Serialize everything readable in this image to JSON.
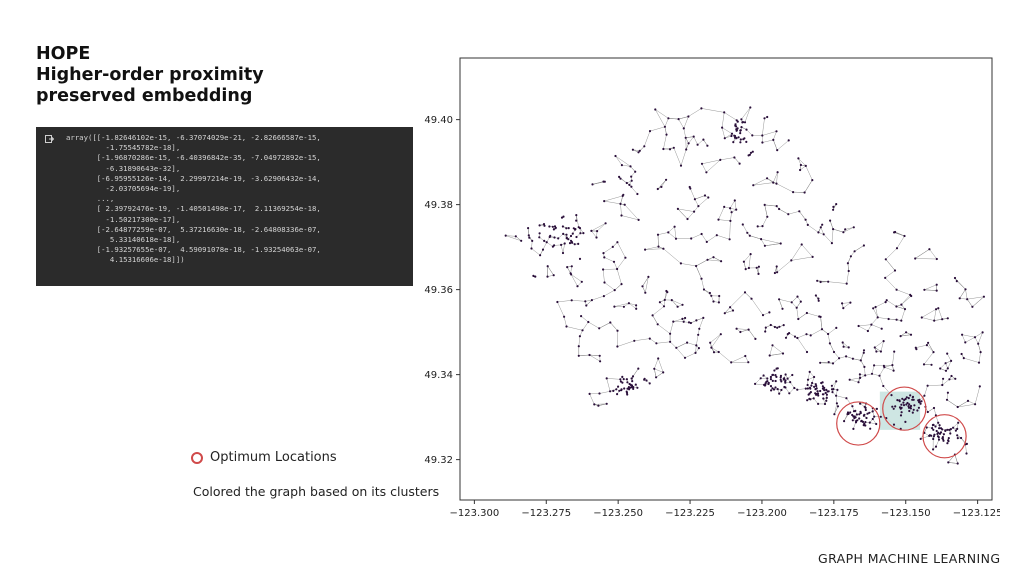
{
  "slide": {
    "title_line1": "HOPE",
    "title_line2": "Higher-order proximity",
    "title_line3": "preserved embedding",
    "legend_label": "Optimum Locations",
    "caption": "Colored the graph based on its clusters",
    "footer": "GRAPH MACHINE LEARNING"
  },
  "code_output": {
    "lines": [
      "array([[-1.82646102e-15, -6.37074029e-21, -2.82666587e-15,",
      "         -1.75545782e-18],",
      "       [-1.96870286e-15, -6.40396842e-35, -7.04972892e-15,",
      "         -6.31890643e-32],",
      "       [-6.95955126e-14,  2.29997214e-19, -3.62906432e-14,",
      "         -2.03705694e-19],",
      "       ...,",
      "       [ 2.39792476e-19, -1.40501498e-17,  2.11369254e-18,",
      "         -1.50217300e-17],",
      "       [-2.64877259e-07,  5.37216630e-18, -2.64808336e-07,",
      "          5.33140618e-18],",
      "       [-1.93257655e-07,  4.59091078e-18, -1.93254063e-07,",
      "          4.15316606e-18]])"
    ]
  },
  "colors": {
    "node": "#2a0f3a",
    "edge": "#7a7a7a",
    "cluster_light": "#c9e3e0",
    "highlight_circle": "#d04a4a"
  },
  "chart_data": {
    "type": "scatter",
    "title": "",
    "xlabel": "",
    "ylabel": "",
    "xlim": [
      -123.305,
      -123.12
    ],
    "ylim": [
      49.3105,
      49.4145
    ],
    "x_ticks": [
      "-123.300",
      "-123.275",
      "-123.250",
      "-123.225",
      "-123.200",
      "-123.175",
      "-123.150",
      "-123.125"
    ],
    "y_ticks": [
      "49.32",
      "49.34",
      "49.36",
      "49.38",
      "49.40"
    ],
    "grid": false,
    "highlight_circles": [
      {
        "x": -123.1665,
        "y": 49.3285,
        "radius_deg": 0.0075
      },
      {
        "x": -123.1505,
        "y": 49.332,
        "radius_deg": 0.0075
      },
      {
        "x": -123.1365,
        "y": 49.3255,
        "radius_deg": 0.0075
      }
    ]
  }
}
